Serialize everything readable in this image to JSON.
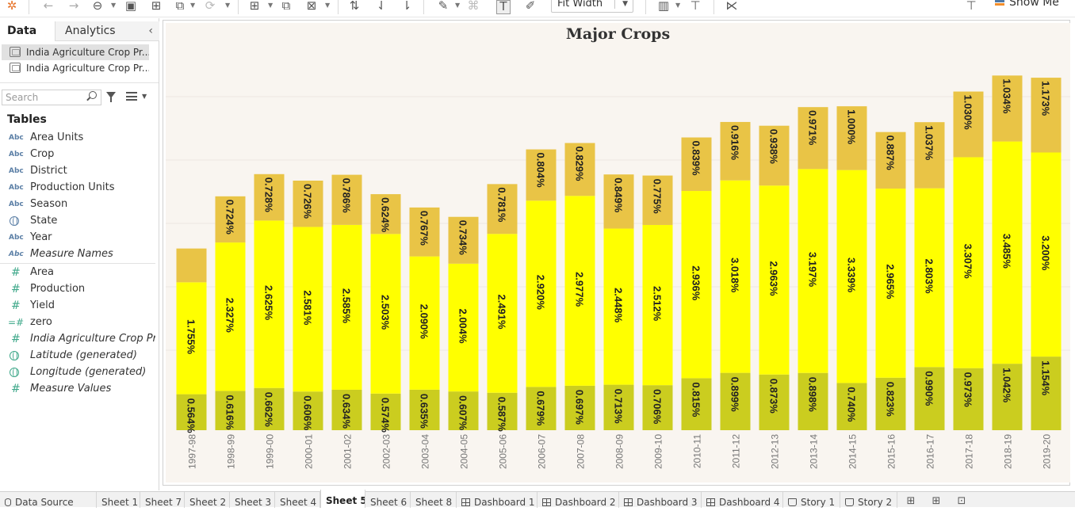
{
  "toolbar": {
    "fit_label": "Fit Width",
    "show_me_label": "Show Me"
  },
  "left_pane": {
    "tabs": {
      "data": "Data",
      "analytics": "Analytics"
    },
    "data_sources": [
      "India Agriculture Crop Pr...",
      "India Agriculture Crop Pr..."
    ],
    "search_placeholder": "Search",
    "tables_heading": "Tables",
    "dimensions": [
      {
        "label": "Area Units",
        "type": "Abc"
      },
      {
        "label": "Crop",
        "type": "Abc"
      },
      {
        "label": "District",
        "type": "Abc"
      },
      {
        "label": "Production Units",
        "type": "Abc"
      },
      {
        "label": "Season",
        "type": "Abc"
      },
      {
        "label": "State",
        "type": "globe"
      },
      {
        "label": "Year",
        "type": "Abc"
      },
      {
        "label": "Measure Names",
        "type": "Abc"
      }
    ],
    "measures": [
      {
        "label": "Area",
        "type": "#"
      },
      {
        "label": "Production",
        "type": "#"
      },
      {
        "label": "Yield",
        "type": "#"
      },
      {
        "label": "zero",
        "type": "=#"
      },
      {
        "label": "India Agriculture Crop Pro...",
        "type": "#"
      },
      {
        "label": "Latitude (generated)",
        "type": "globe"
      },
      {
        "label": "Longitude (generated)",
        "type": "globe"
      },
      {
        "label": "Measure Values",
        "type": "#"
      }
    ]
  },
  "chart_data": {
    "type": "bar",
    "title": "Major Crops",
    "categories": [
      "1997-98",
      "1998-99",
      "1999-00",
      "2000-01",
      "2001-02",
      "2002-03",
      "2003-04",
      "2004-05",
      "2005-06",
      "2006-07",
      "2007-08",
      "2008-09",
      "2009-10",
      "2010-11",
      "2011-12",
      "2012-13",
      "2013-14",
      "2014-15",
      "2015-16",
      "2016-17",
      "2017-18",
      "2018-19",
      "2019-20"
    ],
    "stacked": true,
    "series": [
      {
        "color": "#cbcd1f",
        "values": [
          0.564,
          0.616,
          0.662,
          0.606,
          0.634,
          0.574,
          0.635,
          0.607,
          0.587,
          0.679,
          0.697,
          0.713,
          0.706,
          0.815,
          0.899,
          0.873,
          0.898,
          0.74,
          0.823,
          0.99,
          0.973,
          1.042,
          1.154
        ],
        "labels": [
          "0.564%",
          "0.616%",
          "0.662%",
          "0.606%",
          "0.634%",
          "0.574%",
          "0.635%",
          "0.607%",
          "0.587%",
          "0.679%",
          "0.697%",
          "0.713%",
          "0.706%",
          "0.815%",
          "0.899%",
          "0.873%",
          "0.898%",
          "0.740%",
          "0.823%",
          "0.990%",
          "0.973%",
          "1.042%",
          "1.154%"
        ]
      },
      {
        "color": "#ffff00",
        "values": [
          1.755,
          2.327,
          2.625,
          2.581,
          2.585,
          2.503,
          2.09,
          2.004,
          2.491,
          2.92,
          2.977,
          2.448,
          2.512,
          2.936,
          3.018,
          2.963,
          3.197,
          3.339,
          2.965,
          2.803,
          3.307,
          3.485,
          3.2
        ],
        "labels": [
          "1.755%",
          "2.327%",
          "2.625%",
          "2.581%",
          "2.585%",
          "2.503%",
          "2.090%",
          "2.004%",
          "2.491%",
          "2.920%",
          "2.977%",
          "2.448%",
          "2.512%",
          "2.936%",
          "3.018%",
          "2.963%",
          "3.197%",
          "3.339%",
          "2.965%",
          "2.803%",
          "3.307%",
          "3.485%",
          "3.200%"
        ]
      },
      {
        "color": "#e9c446",
        "values": [
          0.53,
          0.724,
          0.728,
          0.726,
          0.786,
          0.624,
          0.767,
          0.734,
          0.781,
          0.804,
          0.829,
          0.849,
          0.775,
          0.839,
          0.916,
          0.938,
          0.971,
          1.0,
          0.887,
          1.037,
          1.03,
          1.034,
          1.173
        ],
        "labels": [
          "",
          "0.724%",
          "0.728%",
          "0.726%",
          "0.786%",
          "0.624%",
          "0.767%",
          "0.734%",
          "0.781%",
          "0.804%",
          "0.829%",
          "0.849%",
          "0.775%",
          "0.839%",
          "0.916%",
          "0.938%",
          "0.971%",
          "1.000%",
          "0.887%",
          "1.037%",
          "1.030%",
          "1.034%",
          "1.173%"
        ]
      }
    ],
    "grid": true,
    "legend": "none"
  },
  "bottom_tabs": [
    "Data Source",
    "Sheet 1",
    "Sheet 7",
    "Sheet 2",
    "Sheet 3",
    "Sheet 4",
    "Sheet 5",
    "Sheet 6",
    "Sheet 8",
    "Dashboard 1",
    "Dashboard 2",
    "Dashboard 3",
    "Dashboard 4",
    "Story 1",
    "Story 2"
  ],
  "active_tab": "Sheet 5"
}
